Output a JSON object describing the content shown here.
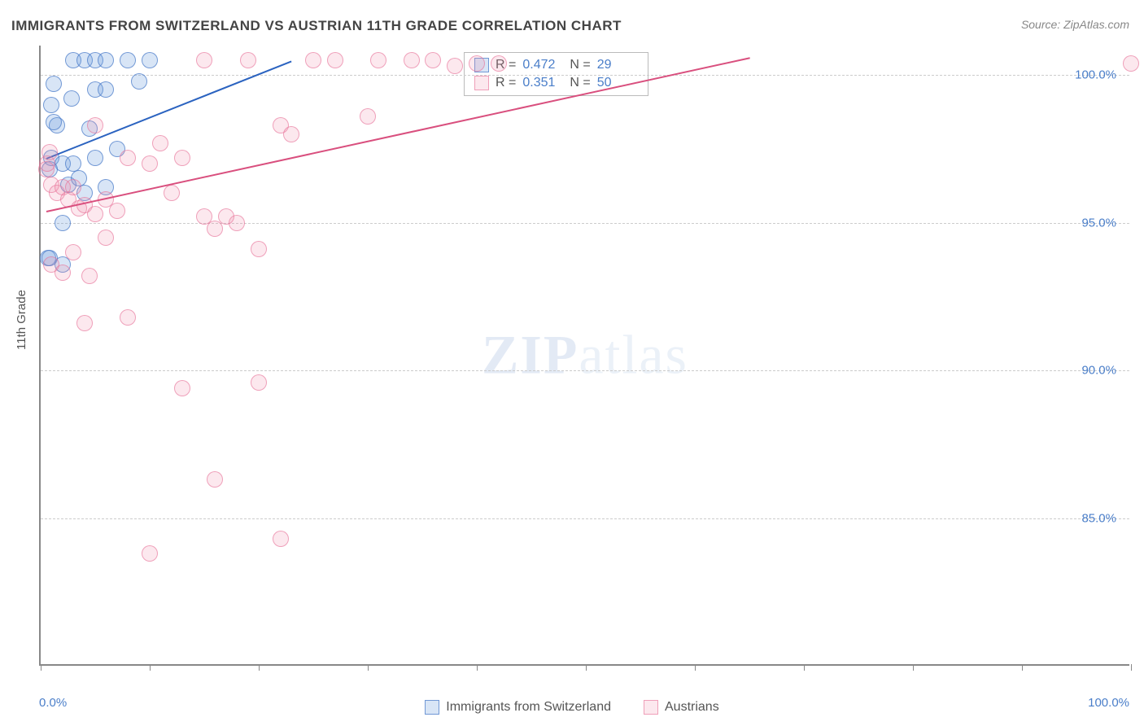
{
  "title": "IMMIGRANTS FROM SWITZERLAND VS AUSTRIAN 11TH GRADE CORRELATION CHART",
  "source": "Source: ZipAtlas.com",
  "ylabel": "11th Grade",
  "watermark_bold": "ZIP",
  "watermark_rest": "atlas",
  "chart": {
    "type": "scatter",
    "xlim": [
      0,
      100
    ],
    "ylim": [
      80,
      101
    ],
    "x_tick_positions": [
      0,
      10,
      20,
      30,
      40,
      50,
      60,
      70,
      80,
      90,
      100
    ],
    "x_tick_labels_shown": {
      "0": "0.0%",
      "100": "100.0%"
    },
    "y_ticks": [
      85.0,
      90.0,
      95.0,
      100.0
    ],
    "y_tick_labels": [
      "85.0%",
      "90.0%",
      "95.0%",
      "100.0%"
    ],
    "background_color": "#ffffff",
    "grid_color": "#cccccc",
    "axis_color": "#888888",
    "tick_label_color": "#4a7ec9",
    "marker_radius": 10,
    "series": [
      {
        "name": "Immigrants from Switzerland",
        "fill": "rgba(100,150,220,0.25)",
        "stroke": "rgba(70,120,200,0.7)",
        "r_value": "0.472",
        "n_value": "29",
        "trend": {
          "x1": 0.5,
          "y1": 97.2,
          "x2": 23,
          "y2": 100.5,
          "color": "#2b63c0"
        },
        "points": [
          [
            1,
            97.2
          ],
          [
            2,
            97.0
          ],
          [
            0.8,
            96.8
          ],
          [
            1.5,
            98.3
          ],
          [
            1.2,
            98.4
          ],
          [
            3,
            100.5
          ],
          [
            4,
            100.5
          ],
          [
            5,
            100.5
          ],
          [
            6,
            100.5
          ],
          [
            8,
            100.5
          ],
          [
            10,
            100.5
          ],
          [
            9,
            99.8
          ],
          [
            5,
            99.5
          ],
          [
            6,
            99.5
          ],
          [
            2,
            95.0
          ],
          [
            2.5,
            96.3
          ],
          [
            3,
            97.0
          ],
          [
            3.5,
            96.5
          ],
          [
            0.7,
            93.8
          ],
          [
            0.8,
            93.8
          ],
          [
            2,
            93.6
          ],
          [
            4,
            96.0
          ],
          [
            5,
            97.2
          ],
          [
            6,
            96.2
          ],
          [
            7,
            97.5
          ],
          [
            4.5,
            98.2
          ],
          [
            1.2,
            99.7
          ],
          [
            1.0,
            99.0
          ],
          [
            2.8,
            99.2
          ]
        ]
      },
      {
        "name": "Austrians",
        "fill": "rgba(240,140,170,0.2)",
        "stroke": "rgba(230,110,150,0.6)",
        "r_value": "0.351",
        "n_value": "50",
        "trend": {
          "x1": 0.5,
          "y1": 95.4,
          "x2": 65,
          "y2": 100.6,
          "color": "#d94f7e"
        },
        "points": [
          [
            0.5,
            96.8
          ],
          [
            1,
            96.3
          ],
          [
            1.5,
            96.0
          ],
          [
            2,
            96.2
          ],
          [
            2.5,
            95.8
          ],
          [
            3,
            96.2
          ],
          [
            3.5,
            95.5
          ],
          [
            4,
            95.6
          ],
          [
            5,
            95.3
          ],
          [
            6,
            95.8
          ],
          [
            7,
            95.4
          ],
          [
            8,
            97.2
          ],
          [
            10,
            97.0
          ],
          [
            11,
            97.7
          ],
          [
            12,
            96.0
          ],
          [
            13,
            97.2
          ],
          [
            15,
            95.2
          ],
          [
            16,
            94.8
          ],
          [
            18,
            95.0
          ],
          [
            20,
            94.1
          ],
          [
            22,
            98.3
          ],
          [
            23,
            98.0
          ],
          [
            25,
            100.5
          ],
          [
            27,
            100.5
          ],
          [
            30,
            98.6
          ],
          [
            31,
            100.5
          ],
          [
            34,
            100.5
          ],
          [
            36,
            100.5
          ],
          [
            38,
            100.3
          ],
          [
            40,
            100.4
          ],
          [
            42,
            100.4
          ],
          [
            100,
            100.4
          ],
          [
            4,
            91.6
          ],
          [
            8,
            91.8
          ],
          [
            4.5,
            93.2
          ],
          [
            13,
            89.4
          ],
          [
            20,
            89.6
          ],
          [
            16,
            86.3
          ],
          [
            22,
            84.3
          ],
          [
            10,
            83.8
          ],
          [
            1,
            93.6
          ],
          [
            2,
            93.3
          ],
          [
            3,
            94.0
          ],
          [
            0.6,
            97.0
          ],
          [
            0.8,
            97.4
          ],
          [
            6,
            94.5
          ],
          [
            17,
            95.2
          ],
          [
            19,
            100.5
          ],
          [
            15,
            100.5
          ],
          [
            5,
            98.3
          ]
        ]
      }
    ]
  },
  "legend": {
    "series_a_label": "Immigrants from Switzerland",
    "series_b_label": "Austrians"
  },
  "stats_labels": {
    "r": "R =",
    "n": "N ="
  }
}
